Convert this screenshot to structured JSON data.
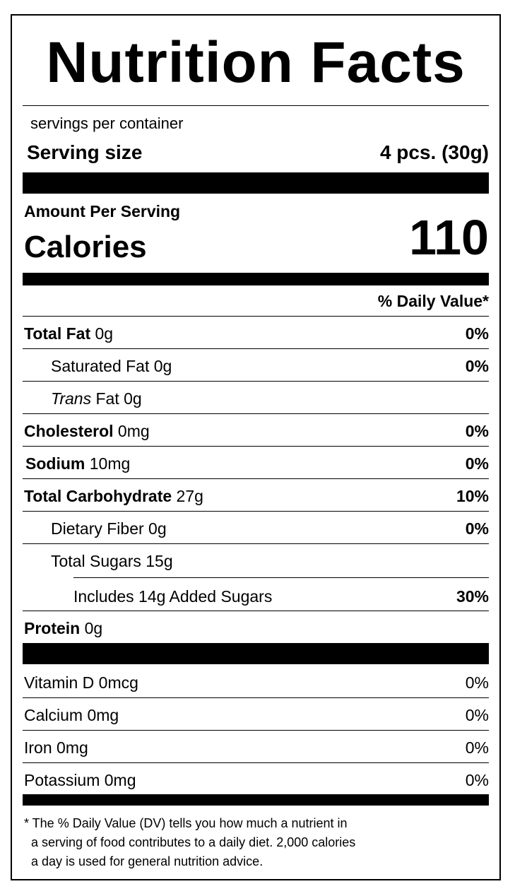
{
  "label": {
    "title": "Nutrition Facts",
    "servings_per_container": "servings per container",
    "serving_size_label": "Serving size",
    "serving_size_value": "4 pcs. (30g)",
    "amount_per_serving": "Amount Per Serving",
    "calories_label": "Calories",
    "calories_value": "110",
    "daily_value_header": "% Daily Value*"
  },
  "nutrients": [
    {
      "name": "Total Fat",
      "amount": "0g",
      "dv": "0%"
    },
    {
      "name": "Saturated Fat",
      "amount": "0g",
      "dv": "0%"
    },
    {
      "name": "Trans",
      "suffix": "Fat",
      "amount": "0g",
      "dv": ""
    },
    {
      "name": "Cholesterol",
      "amount": "0mg",
      "dv": "0%"
    },
    {
      "name": "Sodium",
      "amount": "10mg",
      "dv": "0%"
    },
    {
      "name": "Total Carbohydrate",
      "amount": "27g",
      "dv": "10%"
    },
    {
      "name": "Dietary Fiber",
      "amount": "0g",
      "dv": "0%"
    },
    {
      "name": "Total Sugars",
      "amount": "15g",
      "dv": ""
    },
    {
      "name": "Includes 14g Added Sugars",
      "amount": "",
      "dv": "30%"
    },
    {
      "name": "Protein",
      "amount": "0g",
      "dv": ""
    }
  ],
  "vitamins": [
    {
      "name": "Vitamin D",
      "amount": "0mcg",
      "dv": "0%"
    },
    {
      "name": "Calcium",
      "amount": "0mg",
      "dv": "0%"
    },
    {
      "name": "Iron",
      "amount": "0mg",
      "dv": "0%"
    },
    {
      "name": "Potassium",
      "amount": "0mg",
      "dv": "0%"
    }
  ],
  "footnote": "* The % Daily Value (DV) tells you how much a nutrient in\n  a serving of food contributes to a daily diet. 2,000 calories\n  a day is used for general nutrition advice."
}
